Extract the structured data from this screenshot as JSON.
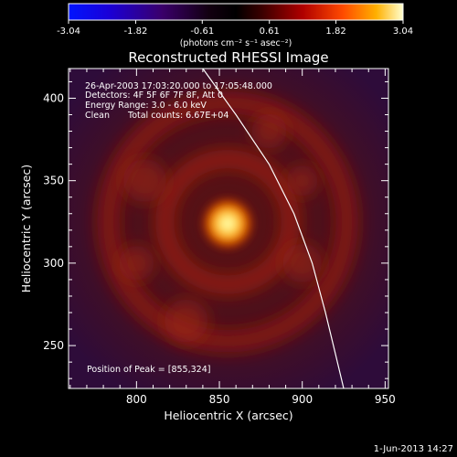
{
  "chart_data": {
    "type": "heatmap",
    "title": "Reconstructed RHESSI Image",
    "xlabel": "Heliocentric X (arcsec)",
    "ylabel": "Heliocentric Y (arcsec)",
    "xlim": [
      759,
      952
    ],
    "ylim": [
      224,
      418
    ],
    "x_ticks": [
      800,
      850,
      900,
      950
    ],
    "y_ticks": [
      250,
      300,
      350,
      400
    ],
    "colorbar": {
      "ticks": [
        "-3.04",
        "-1.82",
        "-0.61",
        "0.61",
        "1.82",
        "3.04"
      ],
      "min": -3.04,
      "max": 3.04,
      "unit_label": "(photons cm⁻² s⁻¹ asec⁻²)"
    },
    "annotations": [
      "26-Apr-2003 17:03:20.000 to 17:05:48.000",
      "Detectors: 4F 5F 6F 7F 8F, Att 0",
      "Energy Range: 3.0 - 6.0 keV",
      "Clean",
      "Total counts: 6.67E+04"
    ],
    "peak_label": "Position of Peak = [855,324]",
    "peak": {
      "x": 855,
      "y": 324
    },
    "limb_curve": [
      [
        840,
        418
      ],
      [
        860,
        390
      ],
      [
        880,
        360
      ],
      [
        895,
        330
      ],
      [
        906,
        300
      ],
      [
        914,
        270
      ],
      [
        920,
        245
      ],
      [
        925,
        224
      ]
    ],
    "ring_center": [
      855,
      325
    ],
    "ring_radii": [
      38,
      72
    ]
  },
  "footer_date": "1-Jun-2013 14:27"
}
